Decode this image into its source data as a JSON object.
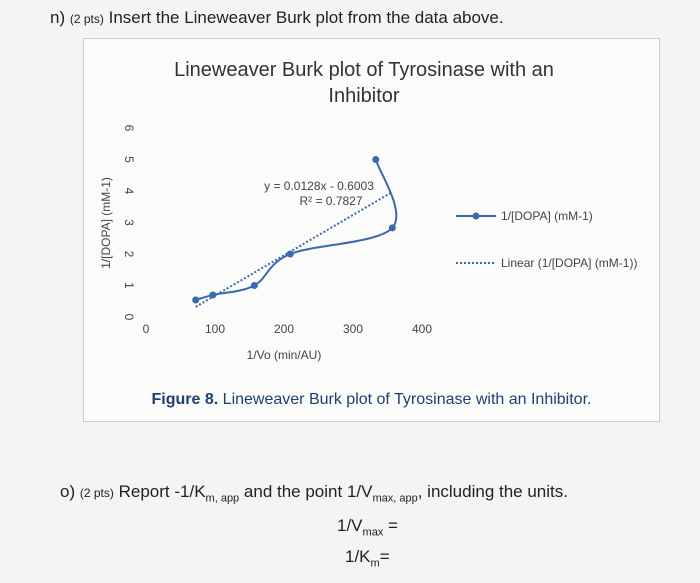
{
  "question_n": {
    "label": "n)",
    "points": "(2 pts)",
    "text": "Insert the Lineweaver Burk plot from the data above."
  },
  "chart_data": {
    "type": "line",
    "title": "Lineweaver Burk plot of Tyrosinase with an Inhibitor",
    "x_label": "1/Vo (min/AU)",
    "y_label": "1/[DOPA] (mM-1)",
    "x": [
      72,
      97,
      157,
      209,
      357,
      333
    ],
    "series": [
      {
        "name": "1/[DOPA] (mM-1)",
        "color": "#3c68ad",
        "values": [
          0.54,
          0.7,
          1.0,
          2.0,
          2.83,
          5.0
        ]
      }
    ],
    "trendline": {
      "name": "Linear (1/[DOPA] (mM-1))",
      "slope": 0.0128,
      "intercept": -0.6003,
      "equation": "y = 0.0128x - 0.6003",
      "r_squared": "R² = 0.7827"
    },
    "xlim": [
      0,
      400
    ],
    "xticks": [
      0,
      100,
      200,
      300,
      400
    ],
    "ylim": [
      0,
      6
    ],
    "yticks": [
      0,
      1,
      2,
      3,
      4,
      5,
      6
    ],
    "legend": "right"
  },
  "caption": {
    "label": "Figure 8.",
    "text": "Lineweaver Burk plot of Tyrosinase with an Inhibitor."
  },
  "question_o": {
    "label": "o)",
    "points": "(2 pts)",
    "parts": [
      "Report -1/K",
      "m, app",
      " and the point 1/V",
      "max, app",
      ", including the units."
    ]
  },
  "answer_vmax": [
    "1/V",
    "max",
    " ="
  ],
  "answer_km": [
    "1/K",
    "m",
    "="
  ]
}
